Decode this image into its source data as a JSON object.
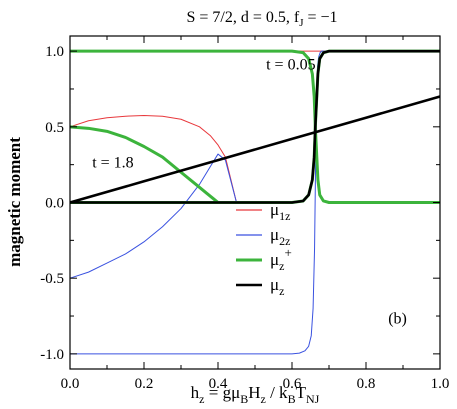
{
  "chart_data": {
    "type": "line",
    "title_parts": {
      "prefix": "S = 7/2,  d = 0.5,  f",
      "sub": "J",
      "suffix": " = −1"
    },
    "xlabel_parts": [
      {
        "t": "h",
        "sub": false
      },
      {
        "t": "z",
        "sub": true
      },
      {
        "t": " = gμ",
        "sub": false
      },
      {
        "t": "B",
        "sub": true
      },
      {
        "t": "H",
        "sub": false
      },
      {
        "t": "z",
        "sub": true
      },
      {
        "t": " / k",
        "sub": false
      },
      {
        "t": "B",
        "sub": true
      },
      {
        "t": "T",
        "sub": false
      },
      {
        "t": "NJ",
        "sub": true
      }
    ],
    "ylabel": "magnetic moment",
    "xlim": [
      0.0,
      1.0
    ],
    "ylim": [
      -1.1,
      1.1
    ],
    "xticks": [
      0.0,
      0.2,
      0.4,
      0.6,
      0.8,
      1.0
    ],
    "xtick_labels": [
      "0.0",
      "0.2",
      "0.4",
      "0.6",
      "0.8",
      "1.0"
    ],
    "yticks": [
      -1.0,
      -0.5,
      0.0,
      0.5,
      1.0
    ],
    "ytick_labels": [
      "-1.0",
      "-0.5",
      "0.0",
      "0.5",
      "1.0"
    ],
    "colors": {
      "mu1z": "#e8383c",
      "mu2z": "#3a52e0",
      "muzplus": "#3cb43c",
      "muz": "#000000"
    },
    "annotations": [
      {
        "text": "t = 0.05",
        "x": 0.53,
        "y": 0.88
      },
      {
        "text": "t = 1.8",
        "x": 0.06,
        "y": 0.23
      },
      {
        "text": "(b)",
        "x": 0.86,
        "y": -0.8
      }
    ],
    "legend": {
      "placement": "lower-center",
      "entries": [
        {
          "key": "mu1z",
          "base": "μ",
          "sub": "1z",
          "sup": ""
        },
        {
          "key": "mu2z",
          "base": "μ",
          "sub": "2z",
          "sup": ""
        },
        {
          "key": "muzplus",
          "base": "μ",
          "sub": "z",
          "sup": "+"
        },
        {
          "key": "muz",
          "base": "μ",
          "sub": "z",
          "sup": ""
        }
      ]
    },
    "series": [
      {
        "key": "mu1z",
        "x": [
          0,
          0.05,
          0.1,
          0.15,
          0.2,
          0.25,
          0.3,
          0.35,
          0.38,
          0.4,
          0.42,
          0.45
        ],
        "y": [
          0.5,
          0.54,
          0.56,
          0.57,
          0.575,
          0.57,
          0.55,
          0.5,
          0.44,
          0.38,
          0.3,
          0.0
        ]
      },
      {
        "key": "mu2z",
        "x": [
          0,
          0.05,
          0.1,
          0.15,
          0.2,
          0.25,
          0.3,
          0.35,
          0.38,
          0.4,
          0.42,
          0.45
        ],
        "y": [
          -0.5,
          -0.46,
          -0.4,
          -0.34,
          -0.26,
          -0.16,
          -0.04,
          0.12,
          0.24,
          0.32,
          0.28,
          0.0
        ]
      },
      {
        "key": "muzplus",
        "x": [
          0,
          0.05,
          0.1,
          0.15,
          0.2,
          0.25,
          0.3,
          0.34,
          0.37,
          0.39,
          0.4
        ],
        "y": [
          0.5,
          0.49,
          0.47,
          0.43,
          0.37,
          0.3,
          0.2,
          0.12,
          0.06,
          0.02,
          0.0
        ]
      },
      {
        "key": "muz",
        "x": [
          0,
          0.2,
          0.4,
          0.6,
          0.8,
          1.0
        ],
        "y": [
          0.0,
          0.14,
          0.28,
          0.42,
          0.56,
          0.7
        ]
      },
      {
        "key": "mu1z",
        "x": [
          0,
          0.6,
          0.63,
          0.65,
          0.66,
          0.665,
          0.68,
          0.7,
          1.0
        ],
        "y": [
          1.0,
          1.0,
          1.0,
          1.0,
          1.0,
          1.0,
          1.0,
          1.0,
          1.0
        ]
      },
      {
        "key": "mu2z",
        "x": [
          0,
          0.6,
          0.62,
          0.635,
          0.645,
          0.652,
          0.657,
          0.661,
          0.664,
          0.666,
          0.669,
          0.672,
          0.676,
          0.68,
          0.7,
          1.0
        ],
        "y": [
          -1.0,
          -1.0,
          -0.995,
          -0.98,
          -0.95,
          -0.88,
          -0.7,
          -0.3,
          0.3,
          0.7,
          0.9,
          0.96,
          0.99,
          1.0,
          1.0,
          1.0
        ]
      },
      {
        "key": "muzplus",
        "x": [
          0,
          0.6,
          0.63,
          0.645,
          0.655,
          0.66,
          0.663,
          0.667,
          0.67,
          0.675,
          0.685,
          0.7,
          1.0
        ],
        "y": [
          1.0,
          1.0,
          0.99,
          0.95,
          0.85,
          0.7,
          0.5,
          0.3,
          0.15,
          0.05,
          0.01,
          0.0,
          0.0
        ]
      },
      {
        "key": "muzplus",
        "x": [
          0,
          0.6,
          0.63,
          0.645,
          0.655,
          0.66,
          0.663,
          0.667,
          0.67,
          0.675,
          0.685,
          0.7,
          1.0
        ],
        "y": [
          0.0,
          0.0,
          0.01,
          0.05,
          0.15,
          0.3,
          0.5,
          0.7,
          0.85,
          0.95,
          0.99,
          1.0,
          1.0
        ]
      },
      {
        "key": "muz",
        "x": [
          0,
          0.6,
          0.63,
          0.645,
          0.655,
          0.66,
          0.663,
          0.667,
          0.67,
          0.675,
          0.685,
          0.7,
          1.0
        ],
        "y": [
          0.0,
          0.0,
          0.01,
          0.05,
          0.15,
          0.3,
          0.5,
          0.7,
          0.85,
          0.95,
          0.99,
          1.0,
          1.0
        ]
      }
    ]
  }
}
